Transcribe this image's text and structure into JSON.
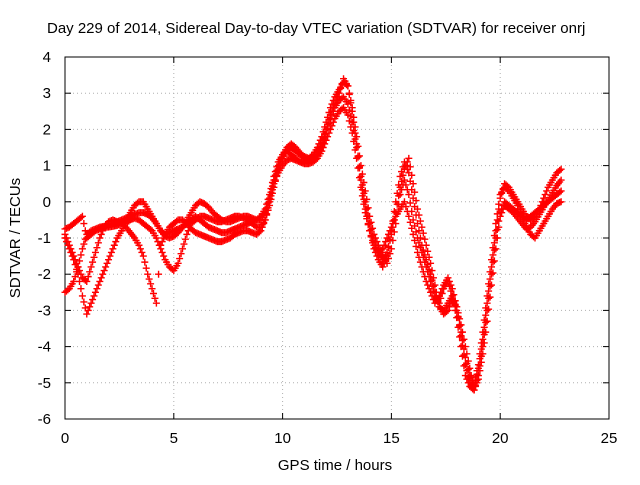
{
  "chart_data": {
    "type": "scatter",
    "title": "Day 229 of 2014, Sidereal Day-to-day VTEC variation (SDTVAR) for receiver onrj",
    "xlabel": "GPS time / hours",
    "ylabel": "SDTVAR / TECUs",
    "xlim": [
      0,
      25
    ],
    "ylim": [
      -6,
      4
    ],
    "xticks": [
      0,
      5,
      10,
      15,
      20,
      25
    ],
    "yticks": [
      -6,
      -5,
      -4,
      -3,
      -2,
      -1,
      0,
      1,
      2,
      3,
      4
    ],
    "grid": true,
    "legend": "none",
    "marker": "+",
    "color": "#ff0000",
    "series": [
      {
        "x": [
          0.0,
          0.2,
          0.4,
          0.6,
          0.8,
          1.0,
          1.2,
          1.4,
          1.6,
          1.8,
          2.0,
          2.2,
          2.4,
          2.6,
          2.8,
          3.0,
          3.2,
          3.4,
          3.6,
          3.8,
          4.0,
          4.2,
          4.4,
          4.6,
          4.8,
          5.0,
          5.2,
          5.4,
          5.6,
          5.8,
          6.0,
          6.2,
          6.4,
          6.6,
          6.8,
          7.0,
          7.2,
          7.4,
          7.6,
          7.8,
          8.0,
          8.2,
          8.4,
          8.6,
          8.8,
          9.0,
          9.2,
          9.4,
          9.6,
          9.8,
          10.0,
          10.2,
          10.4,
          10.6,
          10.8,
          11.0,
          11.2,
          11.4,
          11.6,
          11.8,
          12.0,
          12.2,
          12.4,
          12.6,
          12.8,
          13.0,
          13.2,
          13.4,
          13.6,
          13.8,
          14.0,
          14.2,
          14.4,
          14.6,
          14.8,
          15.0,
          15.2,
          15.4,
          15.6,
          15.8,
          16.0,
          16.2,
          16.4,
          16.6,
          16.8,
          17.0,
          17.2,
          17.4,
          17.6,
          17.8,
          18.0,
          18.2,
          18.4,
          18.6,
          18.8,
          19.0,
          19.2,
          19.4,
          19.6,
          19.8,
          20.0,
          20.2,
          20.4,
          20.6,
          20.8,
          21.0,
          21.2,
          21.4,
          21.6,
          21.8,
          22.0,
          22.2,
          22.4,
          22.6,
          22.8
        ],
        "y": [
          -0.75,
          -0.7,
          -0.6,
          -0.5,
          -0.4,
          -1.0,
          -0.9,
          -0.8,
          -0.75,
          -0.7,
          -0.7,
          -0.68,
          -0.65,
          -0.6,
          -0.5,
          -0.3,
          -0.1,
          0.0,
          0.0,
          -0.2,
          -0.4,
          -0.6,
          -0.8,
          -0.9,
          -0.85,
          -0.8,
          -0.75,
          -0.7,
          -0.6,
          -0.5,
          -0.4,
          -0.5,
          -0.6,
          -0.7,
          -0.75,
          -0.8,
          -0.85,
          -0.85,
          -0.8,
          -0.75,
          -0.7,
          -0.65,
          -0.6,
          -0.55,
          -0.5,
          -0.4,
          -0.2,
          0.2,
          0.7,
          1.1,
          1.3,
          1.4,
          1.3,
          1.2,
          1.1,
          1.1,
          1.2,
          1.3,
          1.5,
          1.8,
          2.2,
          2.6,
          2.9,
          3.1,
          3.3,
          3.2,
          2.6,
          1.8,
          1.0,
          0.3,
          -0.4,
          -0.9,
          -1.2,
          -1.5,
          -1.7,
          -1.3,
          -0.6,
          0.2,
          0.6,
          0.2,
          -0.5,
          -1.0,
          -1.4,
          -1.8,
          -2.2,
          -2.6,
          -2.8,
          -2.4,
          -2.2,
          -2.6,
          -3.2,
          -4.0,
          -4.8,
          -5.1,
          -5.2,
          -4.8,
          -4.0,
          -3.0,
          -2.0,
          -1.0,
          -0.3,
          0.0,
          -0.1,
          -0.2,
          -0.3,
          -0.4,
          -0.5,
          -0.4,
          -0.3,
          -0.2,
          -0.1,
          0.0,
          0.1,
          0.2,
          0.3
        ]
      },
      {
        "x": [
          0.0,
          0.2,
          0.4,
          0.6,
          0.8,
          1.0,
          1.2,
          1.4,
          1.6,
          1.8,
          2.0,
          2.2,
          2.4,
          2.6,
          2.8,
          3.0,
          3.2,
          3.4,
          3.6,
          3.8,
          4.0,
          4.2,
          4.4,
          4.6,
          4.8,
          5.0,
          5.2,
          5.4,
          5.6,
          5.8,
          6.0,
          6.2,
          6.4,
          6.6,
          6.8,
          7.0,
          7.2,
          7.4,
          7.6,
          7.8,
          8.0,
          8.2,
          8.4,
          8.6,
          8.8,
          9.0,
          9.2,
          9.4,
          9.6,
          9.8,
          10.0,
          10.2,
          10.4,
          10.6,
          10.8,
          11.0,
          11.2,
          11.4,
          11.6,
          11.8,
          12.0,
          12.2,
          12.4,
          12.6,
          12.8,
          13.0,
          13.2,
          13.4,
          13.6,
          13.8,
          14.0,
          14.2,
          14.4,
          14.6,
          14.8,
          15.0,
          15.2,
          15.4,
          15.6,
          15.8,
          16.0,
          16.2,
          16.4,
          16.6,
          16.8,
          17.0,
          17.2,
          17.4,
          17.6,
          17.8,
          18.0,
          18.2,
          18.4,
          18.6,
          18.8,
          19.0,
          19.2,
          19.4,
          19.6,
          19.8,
          20.0,
          20.2,
          20.4,
          20.6,
          20.8,
          21.0,
          21.2,
          21.4,
          21.6,
          21.8,
          22.0,
          22.2,
          22.4,
          22.6,
          22.8
        ],
        "y": [
          -1.0,
          -1.3,
          -1.6,
          -2.0,
          -2.6,
          -3.1,
          -2.8,
          -2.5,
          -2.2,
          -1.9,
          -1.6,
          -1.3,
          -1.0,
          -0.8,
          -0.6,
          -0.5,
          -0.45,
          -0.5,
          -0.6,
          -0.7,
          -0.8,
          -1.0,
          -1.3,
          -1.6,
          -1.8,
          -1.9,
          -1.7,
          -1.3,
          -0.9,
          -0.6,
          -0.5,
          -0.4,
          -0.4,
          -0.45,
          -0.5,
          -0.55,
          -0.55,
          -0.5,
          -0.45,
          -0.4,
          -0.4,
          -0.45,
          -0.5,
          -0.6,
          -0.7,
          -0.7,
          -0.5,
          -0.1,
          0.4,
          0.9,
          1.2,
          1.4,
          1.5,
          1.4,
          1.3,
          1.2,
          1.15,
          1.2,
          1.3,
          1.5,
          1.9,
          2.3,
          2.6,
          2.8,
          2.9,
          2.7,
          2.2,
          1.5,
          0.7,
          0.0,
          -0.6,
          -1.1,
          -1.4,
          -1.6,
          -1.4,
          -0.9,
          -0.3,
          0.4,
          0.9,
          1.2,
          0.5,
          -0.2,
          -0.7,
          -1.2,
          -1.7,
          -2.3,
          -2.9,
          -3.0,
          -2.8,
          -2.6,
          -3.0,
          -3.6,
          -4.3,
          -4.8,
          -5.0,
          -4.5,
          -3.6,
          -2.6,
          -1.6,
          -0.6,
          0.2,
          0.4,
          0.3,
          0.1,
          -0.1,
          -0.4,
          -0.7,
          -0.9,
          -1.0,
          -0.8,
          -0.6,
          -0.4,
          -0.2,
          -0.05,
          0.0
        ]
      },
      {
        "x": [
          0.0,
          0.2,
          0.4,
          0.6,
          0.8,
          1.0,
          1.2,
          1.4,
          1.6,
          1.8,
          2.0,
          2.2,
          2.4,
          2.6,
          2.8,
          3.0,
          3.2,
          3.4,
          3.6,
          3.8,
          4.0,
          4.2,
          4.4,
          4.6,
          4.8,
          5.0,
          5.2,
          5.4,
          5.6,
          5.8,
          6.0,
          6.2,
          6.4,
          6.6,
          6.8,
          7.0,
          7.2,
          7.4,
          7.6,
          7.8,
          8.0,
          8.2,
          8.4,
          8.6,
          8.8,
          9.0,
          9.2,
          9.4,
          9.6,
          9.8,
          10.0,
          10.2,
          10.4,
          10.6,
          10.8,
          11.0,
          11.2,
          11.4,
          11.6,
          11.8,
          12.0,
          12.2,
          12.4,
          12.6,
          12.8,
          13.0,
          13.2,
          13.4,
          13.6,
          13.8,
          14.0,
          14.2,
          14.4,
          14.6,
          14.8,
          15.0,
          15.2,
          15.4,
          15.6,
          15.8,
          16.0,
          16.2,
          16.4,
          16.6,
          16.8,
          17.0,
          17.2,
          17.4,
          17.6,
          17.8,
          18.0,
          18.2,
          18.4,
          18.6,
          18.8,
          19.0,
          19.2,
          19.4,
          19.6,
          19.8,
          20.0,
          20.2,
          20.4,
          20.6,
          20.8,
          21.0,
          21.2,
          21.4,
          21.6,
          21.8,
          22.0,
          22.2,
          22.4,
          22.6,
          22.8
        ],
        "y": [
          -0.9,
          -1.2,
          -1.5,
          -1.8,
          -2.1,
          -2.2,
          -1.8,
          -1.4,
          -1.0,
          -0.7,
          -0.55,
          -0.5,
          -0.55,
          -0.6,
          -0.7,
          -0.85,
          -1.0,
          -1.2,
          -1.5,
          -2.0,
          -2.4,
          -2.8,
          -1.2,
          -0.9,
          -0.7,
          -0.6,
          -0.5,
          -0.5,
          -0.6,
          -0.75,
          -0.85,
          -0.9,
          -0.95,
          -1.0,
          -1.05,
          -1.1,
          -1.1,
          -1.05,
          -1.0,
          -0.9,
          -0.85,
          -0.8,
          -0.8,
          -0.85,
          -0.9,
          -0.8,
          -0.5,
          0.0,
          0.5,
          0.8,
          1.0,
          1.15,
          1.2,
          1.15,
          1.1,
          1.05,
          1.05,
          1.1,
          1.2,
          1.4,
          1.7,
          2.0,
          2.3,
          2.5,
          2.6,
          2.4,
          1.9,
          1.2,
          0.4,
          -0.3,
          -0.8,
          -1.2,
          -1.4,
          -1.3,
          -1.0,
          -0.7,
          -0.4,
          -0.2,
          0.0,
          -0.4,
          -0.9,
          -1.4,
          -1.8,
          -2.2,
          -2.5,
          -2.8,
          -2.6,
          -2.3,
          -2.1,
          -2.4,
          -2.9,
          -3.4,
          -4.0,
          -4.6,
          -5.2,
          -4.9,
          -4.2,
          -3.3,
          -2.3,
          -1.3,
          -0.4,
          -0.1,
          -0.2,
          -0.3,
          -0.45,
          -0.6,
          -0.75,
          -0.7,
          -0.55,
          -0.35,
          -0.15,
          0.05,
          0.25,
          0.45,
          0.6
        ]
      },
      {
        "x": [
          0.0,
          0.2,
          0.4,
          0.6,
          0.8,
          1.0,
          1.2,
          1.4,
          1.6,
          1.8,
          2.0,
          2.2,
          2.4,
          2.6,
          2.8,
          3.0,
          3.2,
          3.4,
          3.6,
          3.8,
          4.0,
          4.2,
          4.4,
          4.6,
          4.8,
          5.0,
          5.2,
          5.4,
          5.6,
          5.8,
          6.0,
          6.2,
          6.4,
          6.6,
          6.8,
          7.0,
          7.2,
          7.4,
          7.6,
          7.8,
          8.0,
          8.2,
          8.4,
          8.6,
          8.8,
          9.0,
          9.2,
          9.4,
          9.6,
          9.8,
          10.0,
          10.2,
          10.4,
          10.6,
          10.8,
          11.0,
          11.2,
          11.4,
          11.6,
          11.8,
          12.0,
          12.2,
          12.4,
          12.6,
          12.8,
          13.0,
          13.2,
          13.4,
          13.6,
          13.8,
          14.0,
          14.2,
          14.4,
          14.6,
          14.8,
          15.0,
          15.2,
          15.4,
          15.6,
          15.8,
          16.0,
          16.2,
          16.4,
          16.6,
          16.8,
          17.0,
          17.2,
          17.4,
          17.6,
          17.8,
          18.0,
          18.2,
          18.4,
          18.6,
          18.8,
          19.0,
          19.2,
          19.4,
          19.6,
          19.8,
          20.0,
          20.2,
          20.4,
          20.6,
          20.8,
          21.0,
          21.2,
          21.4,
          21.6,
          21.8,
          22.0,
          22.2,
          22.4,
          22.6,
          22.8
        ],
        "y": [
          -2.5,
          -2.4,
          -2.2,
          -1.8,
          -1.3,
          -0.9,
          -0.8,
          -0.75,
          -0.7,
          -0.68,
          -0.65,
          -0.6,
          -0.55,
          -0.5,
          -0.45,
          -0.4,
          -0.35,
          -0.3,
          -0.3,
          -0.35,
          -0.45,
          -0.6,
          -0.8,
          -0.95,
          -1.0,
          -0.95,
          -0.85,
          -0.7,
          -0.5,
          -0.3,
          -0.1,
          0.0,
          -0.05,
          -0.15,
          -0.3,
          -0.4,
          -0.5,
          -0.55,
          -0.55,
          -0.5,
          -0.45,
          -0.4,
          -0.4,
          -0.45,
          -0.5,
          -0.5,
          -0.3,
          0.1,
          0.6,
          1.0,
          1.3,
          1.5,
          1.6,
          1.5,
          1.35,
          1.25,
          1.2,
          1.25,
          1.4,
          1.6,
          2.0,
          2.4,
          2.7,
          3.0,
          3.4,
          3.2,
          2.5,
          1.6,
          0.6,
          -0.2,
          -0.8,
          -1.3,
          -1.6,
          -1.8,
          -1.5,
          -0.8,
          0.0,
          0.7,
          1.1,
          0.8,
          0.1,
          -0.6,
          -1.2,
          -1.6,
          -2.0,
          -2.5,
          -2.9,
          -3.1,
          -3.0,
          -2.7,
          -2.9,
          -3.7,
          -4.5,
          -5.0,
          -5.1,
          -4.6,
          -3.8,
          -2.8,
          -1.8,
          -0.8,
          0.1,
          0.5,
          0.4,
          0.2,
          0.0,
          -0.2,
          -0.4,
          -0.5,
          -0.4,
          -0.2,
          0.1,
          0.4,
          0.6,
          0.8,
          0.9
        ]
      }
    ]
  }
}
